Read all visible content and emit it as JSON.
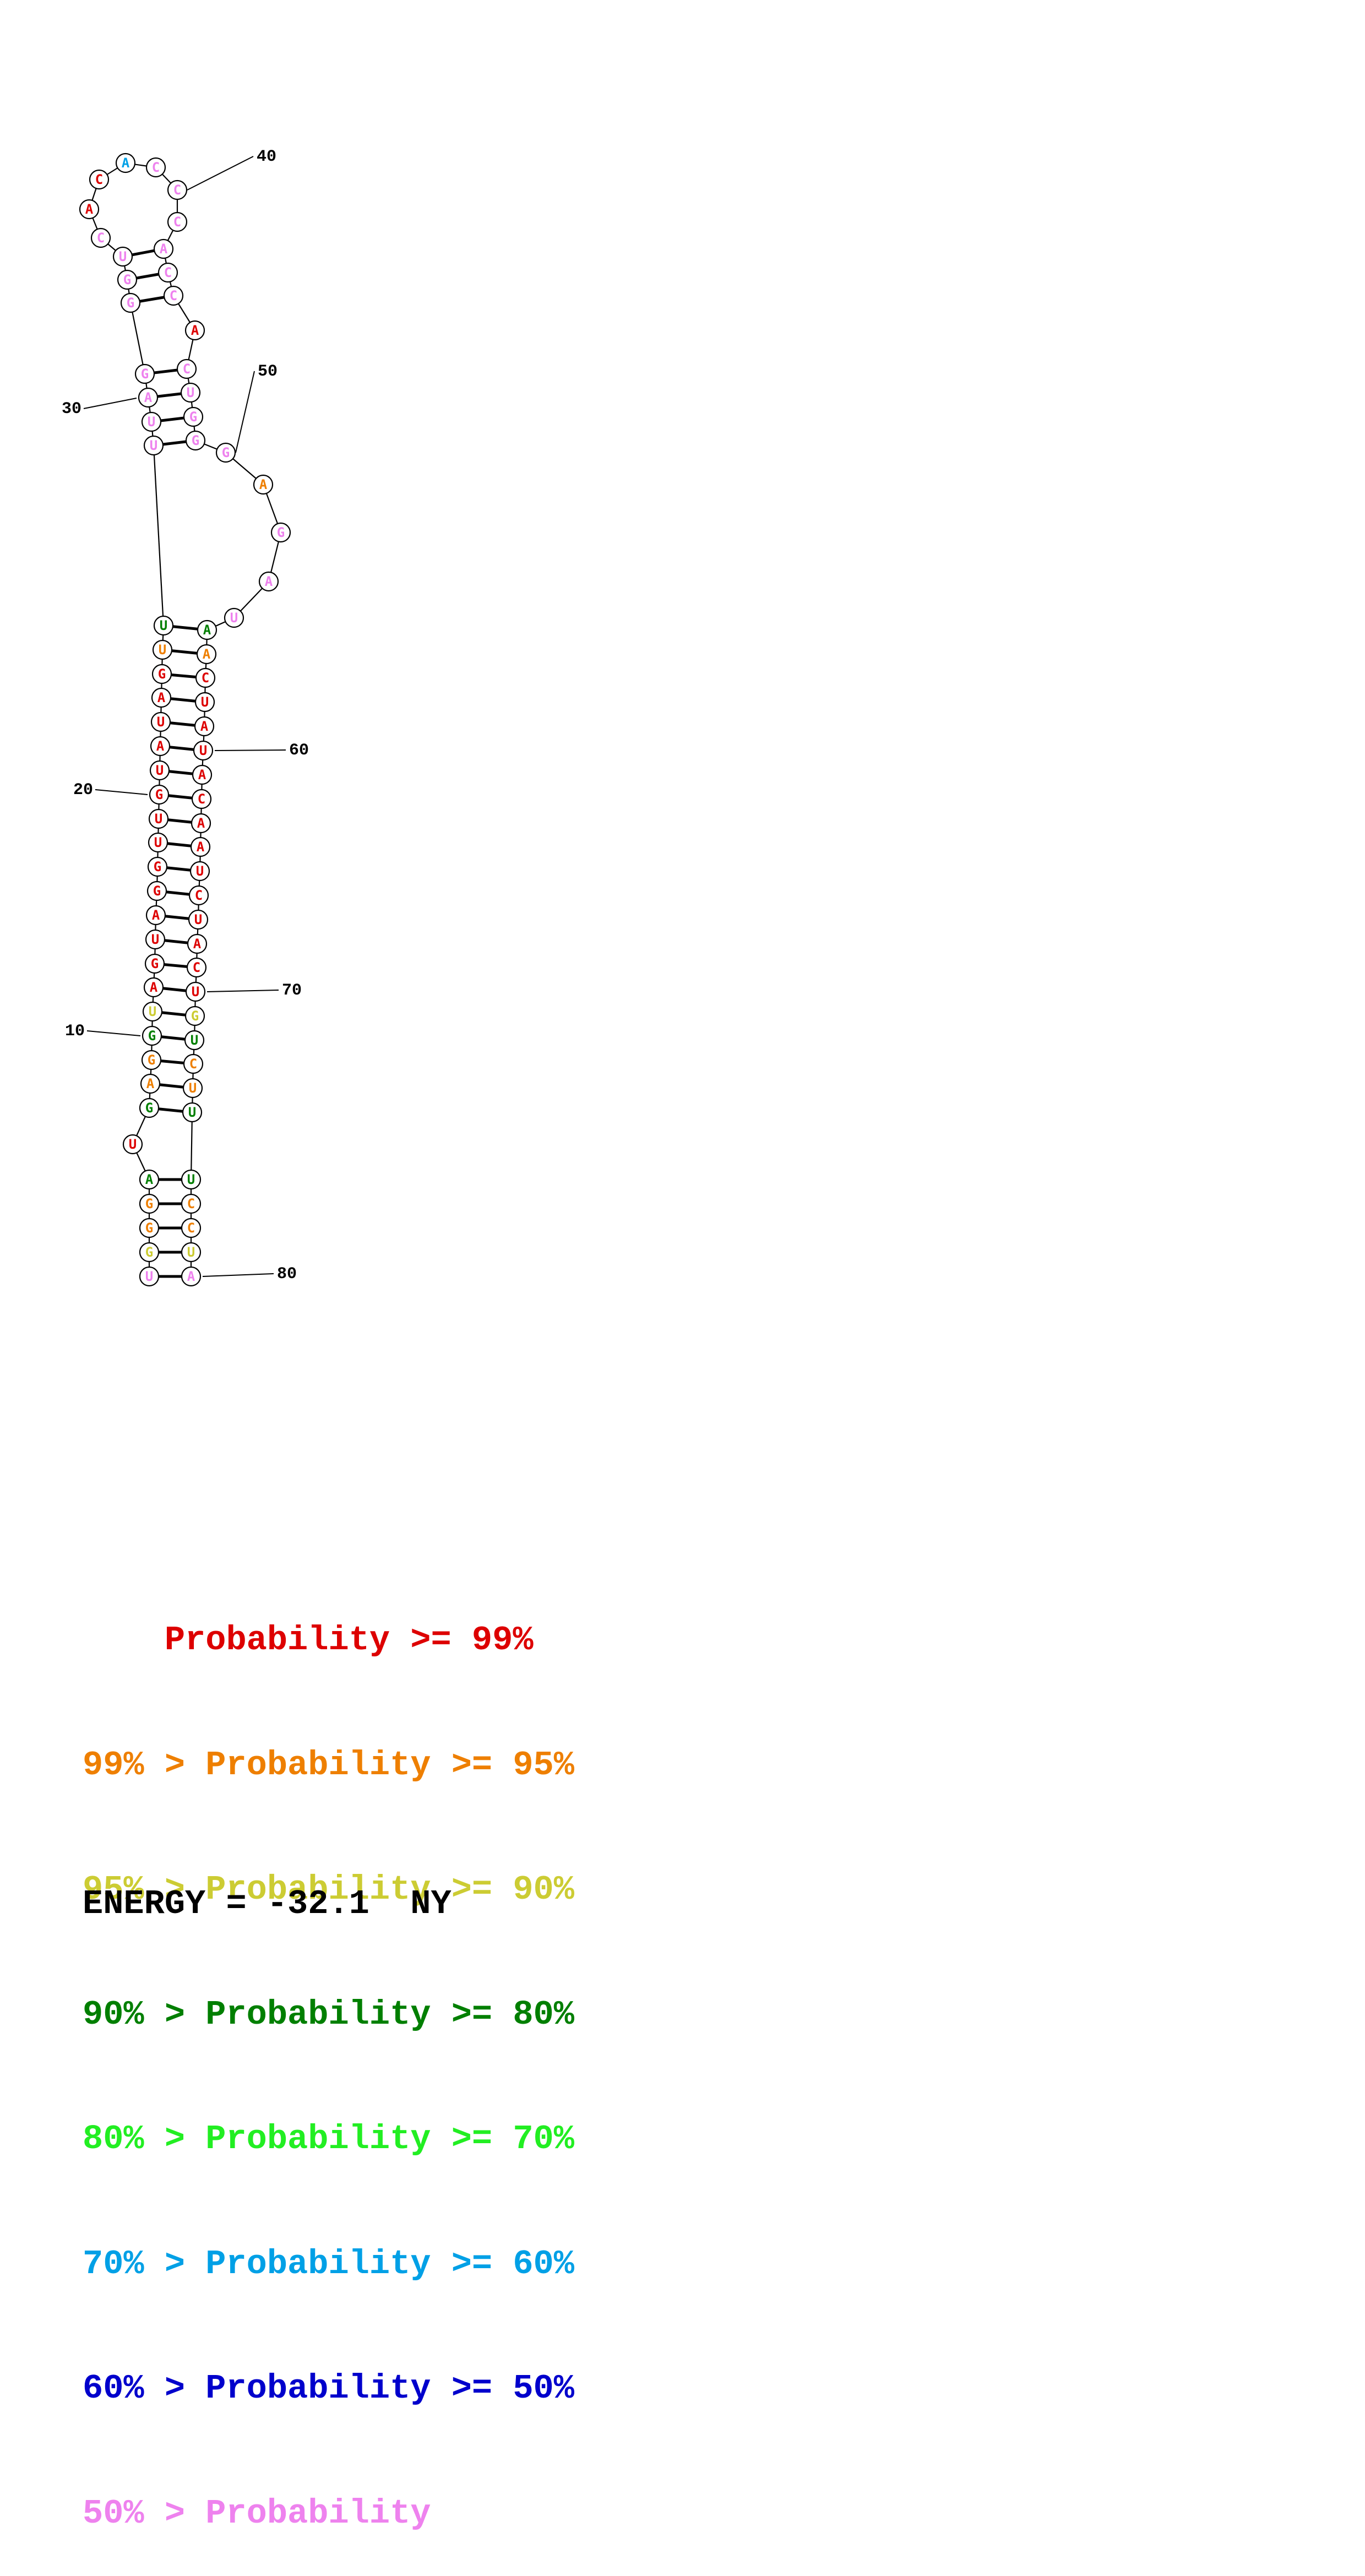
{
  "structure": {
    "nucleotides": [
      {
        "n": 1,
        "base": "U",
        "color": "#ee82ee"
      },
      {
        "n": 2,
        "base": "G",
        "color": "#cccc33"
      },
      {
        "n": 3,
        "base": "G",
        "color": "#ee7f00"
      },
      {
        "n": 4,
        "base": "G",
        "color": "#ee7f00"
      },
      {
        "n": 5,
        "base": "A",
        "color": "#007f00"
      },
      {
        "n": 6,
        "base": "U",
        "color": "#dd0000"
      },
      {
        "n": 7,
        "base": "G",
        "color": "#007f00"
      },
      {
        "n": 8,
        "base": "A",
        "color": "#ee7f00"
      },
      {
        "n": 9,
        "base": "G",
        "color": "#ee7f00"
      },
      {
        "n": 10,
        "base": "G",
        "color": "#007f00"
      },
      {
        "n": 11,
        "base": "U",
        "color": "#cccc33"
      },
      {
        "n": 12,
        "base": "A",
        "color": "#dd0000"
      },
      {
        "n": 13,
        "base": "G",
        "color": "#dd0000"
      },
      {
        "n": 14,
        "base": "U",
        "color": "#dd0000"
      },
      {
        "n": 15,
        "base": "A",
        "color": "#dd0000"
      },
      {
        "n": 16,
        "base": "G",
        "color": "#dd0000"
      },
      {
        "n": 17,
        "base": "G",
        "color": "#dd0000"
      },
      {
        "n": 18,
        "base": "U",
        "color": "#dd0000"
      },
      {
        "n": 19,
        "base": "U",
        "color": "#dd0000"
      },
      {
        "n": 20,
        "base": "G",
        "color": "#dd0000"
      },
      {
        "n": 21,
        "base": "U",
        "color": "#dd0000"
      },
      {
        "n": 22,
        "base": "A",
        "color": "#dd0000"
      },
      {
        "n": 23,
        "base": "U",
        "color": "#dd0000"
      },
      {
        "n": 24,
        "base": "A",
        "color": "#dd0000"
      },
      {
        "n": 25,
        "base": "G",
        "color": "#dd0000"
      },
      {
        "n": 26,
        "base": "U",
        "color": "#ee7f00"
      },
      {
        "n": 27,
        "base": "U",
        "color": "#007f00"
      },
      {
        "n": 28,
        "base": "U",
        "color": "#ee82ee"
      },
      {
        "n": 29,
        "base": "U",
        "color": "#ee82ee"
      },
      {
        "n": 30,
        "base": "A",
        "color": "#ee82ee"
      },
      {
        "n": 31,
        "base": "G",
        "color": "#ee82ee"
      },
      {
        "n": 32,
        "base": "G",
        "color": "#ee82ee"
      },
      {
        "n": 33,
        "base": "G",
        "color": "#ee82ee"
      },
      {
        "n": 34,
        "base": "U",
        "color": "#ee82ee"
      },
      {
        "n": 35,
        "base": "C",
        "color": "#ee82ee"
      },
      {
        "n": 36,
        "base": "A",
        "color": "#dd0000"
      },
      {
        "n": 37,
        "base": "C",
        "color": "#dd0000"
      },
      {
        "n": 38,
        "base": "A",
        "color": "#00a0e6"
      },
      {
        "n": 39,
        "base": "C",
        "color": "#ee82ee"
      },
      {
        "n": 40,
        "base": "C",
        "color": "#ee82ee"
      },
      {
        "n": 41,
        "base": "C",
        "color": "#ee82ee"
      },
      {
        "n": 42,
        "base": "A",
        "color": "#ee82ee"
      },
      {
        "n": 43,
        "base": "C",
        "color": "#ee82ee"
      },
      {
        "n": 44,
        "base": "C",
        "color": "#ee82ee"
      },
      {
        "n": 45,
        "base": "A",
        "color": "#dd0000"
      },
      {
        "n": 46,
        "base": "C",
        "color": "#ee82ee"
      },
      {
        "n": 47,
        "base": "U",
        "color": "#ee82ee"
      },
      {
        "n": 48,
        "base": "G",
        "color": "#ee82ee"
      },
      {
        "n": 49,
        "base": "G",
        "color": "#ee82ee"
      },
      {
        "n": 50,
        "base": "G",
        "color": "#ee82ee"
      },
      {
        "n": 51,
        "base": "A",
        "color": "#ee7f00"
      },
      {
        "n": 52,
        "base": "G",
        "color": "#ee82ee"
      },
      {
        "n": 53,
        "base": "A",
        "color": "#ee82ee"
      },
      {
        "n": 54,
        "base": "U",
        "color": "#ee82ee"
      },
      {
        "n": 55,
        "base": "A",
        "color": "#007f00"
      },
      {
        "n": 56,
        "base": "A",
        "color": "#ee7f00"
      },
      {
        "n": 57,
        "base": "C",
        "color": "#dd0000"
      },
      {
        "n": 58,
        "base": "U",
        "color": "#dd0000"
      },
      {
        "n": 59,
        "base": "A",
        "color": "#dd0000"
      },
      {
        "n": 60,
        "base": "U",
        "color": "#dd0000"
      },
      {
        "n": 61,
        "base": "A",
        "color": "#dd0000"
      },
      {
        "n": 62,
        "base": "C",
        "color": "#dd0000"
      },
      {
        "n": 63,
        "base": "A",
        "color": "#dd0000"
      },
      {
        "n": 64,
        "base": "A",
        "color": "#dd0000"
      },
      {
        "n": 65,
        "base": "U",
        "color": "#dd0000"
      },
      {
        "n": 66,
        "base": "C",
        "color": "#dd0000"
      },
      {
        "n": 67,
        "base": "U",
        "color": "#dd0000"
      },
      {
        "n": 68,
        "base": "A",
        "color": "#dd0000"
      },
      {
        "n": 69,
        "base": "C",
        "color": "#dd0000"
      },
      {
        "n": 70,
        "base": "U",
        "color": "#dd0000"
      },
      {
        "n": 71,
        "base": "G",
        "color": "#cccc33"
      },
      {
        "n": 72,
        "base": "U",
        "color": "#007f00"
      },
      {
        "n": 73,
        "base": "C",
        "color": "#ee7f00"
      },
      {
        "n": 74,
        "base": "U",
        "color": "#ee7f00"
      },
      {
        "n": 75,
        "base": "U",
        "color": "#007f00"
      },
      {
        "n": 76,
        "base": "U",
        "color": "#007f00"
      },
      {
        "n": 77,
        "base": "C",
        "color": "#ee7f00"
      },
      {
        "n": 78,
        "base": "C",
        "color": "#ee7f00"
      },
      {
        "n": 79,
        "base": "U",
        "color": "#cccc33"
      },
      {
        "n": 80,
        "base": "A",
        "color": "#ee82ee"
      }
    ],
    "pairs": [
      [
        1,
        80
      ],
      [
        2,
        79
      ],
      [
        3,
        78
      ],
      [
        4,
        77
      ],
      [
        5,
        76
      ],
      [
        7,
        75
      ],
      [
        8,
        74
      ],
      [
        9,
        73
      ],
      [
        10,
        72
      ],
      [
        11,
        71
      ],
      [
        12,
        70
      ],
      [
        13,
        69
      ],
      [
        14,
        68
      ],
      [
        15,
        67
      ],
      [
        16,
        66
      ],
      [
        17,
        65
      ],
      [
        18,
        64
      ],
      [
        19,
        63
      ],
      [
        20,
        62
      ],
      [
        21,
        61
      ],
      [
        22,
        60
      ],
      [
        23,
        59
      ],
      [
        24,
        58
      ],
      [
        25,
        57
      ],
      [
        26,
        56
      ],
      [
        27,
        55
      ],
      [
        28,
        49
      ],
      [
        29,
        48
      ],
      [
        30,
        47
      ],
      [
        31,
        46
      ],
      [
        32,
        44
      ],
      [
        33,
        43
      ],
      [
        34,
        42
      ]
    ],
    "index_labels": [
      {
        "n": 10,
        "text": "10"
      },
      {
        "n": 20,
        "text": "20"
      },
      {
        "n": 30,
        "text": "30"
      },
      {
        "n": 40,
        "text": "40"
      },
      {
        "n": 50,
        "text": "50"
      },
      {
        "n": 60,
        "text": "60"
      },
      {
        "n": 70,
        "text": "70"
      },
      {
        "n": 80,
        "text": "80"
      }
    ]
  },
  "legend": [
    {
      "prefix": "    ",
      "text": "    Probability >= 99%",
      "color": "#dd0000"
    },
    {
      "prefix": "",
      "text": "99% > Probability >= 95%",
      "color": "#ee7f00"
    },
    {
      "prefix": "",
      "text": "95% > Probability >= 90%",
      "color": "#cccc33"
    },
    {
      "prefix": "",
      "text": "90% > Probability >= 80%",
      "color": "#007f00"
    },
    {
      "prefix": "",
      "text": "80% > Probability >= 70%",
      "color": "#22ee22"
    },
    {
      "prefix": "",
      "text": "70% > Probability >= 60%",
      "color": "#00a0e6"
    },
    {
      "prefix": "",
      "text": "60% > Probability >= 50%",
      "color": "#0000cc"
    },
    {
      "prefix": "",
      "text": "50% > Probability",
      "color": "#ee82ee"
    }
  ],
  "energy": "ENERGY = -32.1  NY"
}
